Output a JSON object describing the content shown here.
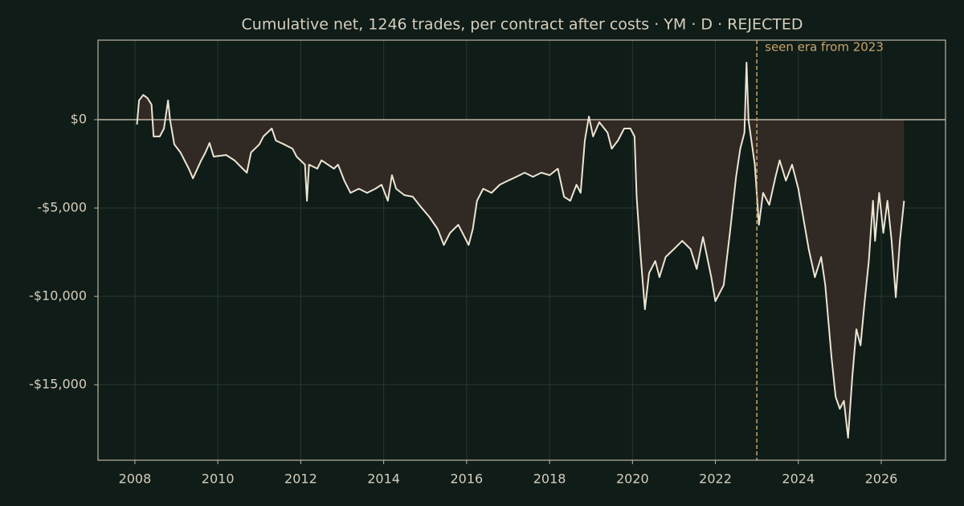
{
  "chart_data": {
    "type": "line",
    "title": "Cumulative net, 1246 trades, per contract after costs  ·  YM · D · REJECTED",
    "annotation": "seen era from 2023",
    "annotation_x": 2023.0,
    "xlim": [
      2007.11,
      2027.55
    ],
    "ylim": [
      -19270,
      4500
    ],
    "xticks": [
      2008,
      2010,
      2012,
      2014,
      2016,
      2018,
      2020,
      2022,
      2024,
      2026
    ],
    "yticks": [
      {
        "value": 0,
        "label": "$0"
      },
      {
        "value": -5000,
        "label": "-$5,000"
      },
      {
        "value": -10000,
        "label": "-$10,000"
      },
      {
        "value": -15000,
        "label": "-$15,000"
      }
    ],
    "grid": true,
    "fill_to_zero": true,
    "line_color": "#ede4d3",
    "fill_color": "#312a24",
    "annotation_color": "#c9a46a",
    "x": [
      2008.05,
      2008.1,
      2008.2,
      2008.3,
      2008.4,
      2008.45,
      2008.6,
      2008.7,
      2008.8,
      2008.85,
      2008.95,
      2009.1,
      2009.3,
      2009.4,
      2009.6,
      2009.7,
      2009.8,
      2009.9,
      2010.2,
      2010.4,
      2010.6,
      2010.7,
      2010.8,
      2011.0,
      2011.1,
      2011.3,
      2011.4,
      2011.6,
      2011.8,
      2011.9,
      2012.1,
      2012.15,
      2012.2,
      2012.4,
      2012.5,
      2012.8,
      2012.9,
      2013.05,
      2013.2,
      2013.4,
      2013.6,
      2013.8,
      2013.95,
      2014.1,
      2014.2,
      2014.3,
      2014.5,
      2014.7,
      2014.9,
      2015.1,
      2015.3,
      2015.45,
      2015.6,
      2015.8,
      2015.95,
      2016.05,
      2016.15,
      2016.25,
      2016.4,
      2016.6,
      2016.8,
      2017.0,
      2017.2,
      2017.4,
      2017.6,
      2017.8,
      2018.0,
      2018.2,
      2018.35,
      2018.5,
      2018.65,
      2018.75,
      2018.85,
      2018.95,
      2019.05,
      2019.2,
      2019.4,
      2019.5,
      2019.65,
      2019.8,
      2019.95,
      2020.05,
      2020.1,
      2020.2,
      2020.3,
      2020.4,
      2020.55,
      2020.65,
      2020.8,
      2021.0,
      2021.2,
      2021.4,
      2021.55,
      2021.7,
      2021.9,
      2022.0,
      2022.2,
      2022.35,
      2022.5,
      2022.6,
      2022.7,
      2022.75,
      2022.8,
      2022.95,
      2023.05,
      2023.15,
      2023.3,
      2023.45,
      2023.55,
      2023.7,
      2023.85,
      2024.0,
      2024.1,
      2024.25,
      2024.4,
      2024.55,
      2024.65,
      2024.8,
      2024.9,
      2025.0,
      2025.1,
      2025.2,
      2025.3,
      2025.4,
      2025.5,
      2025.6,
      2025.7,
      2025.8,
      2025.85,
      2025.95,
      2026.05,
      2026.15,
      2026.25,
      2026.35,
      2026.45,
      2026.55
    ],
    "values": [
      -270,
      1090,
      1400,
      1230,
      860,
      -950,
      -950,
      -500,
      1090,
      -45,
      -1400,
      -1860,
      -2770,
      -3320,
      -2300,
      -1860,
      -1320,
      -2090,
      -2000,
      -2300,
      -2770,
      -3000,
      -1860,
      -1400,
      -950,
      -500,
      -1180,
      -1400,
      -1640,
      -2090,
      -2545,
      -4590,
      -2545,
      -2770,
      -2300,
      -2770,
      -2545,
      -3450,
      -4140,
      -3910,
      -4140,
      -3910,
      -3680,
      -4590,
      -3140,
      -3910,
      -4270,
      -4360,
      -4950,
      -5500,
      -6180,
      -7090,
      -6410,
      -5950,
      -6640,
      -7090,
      -6180,
      -4590,
      -3910,
      -4140,
      -3680,
      -3450,
      -3230,
      -3000,
      -3230,
      -3000,
      -3140,
      -2770,
      -4360,
      -4590,
      -3680,
      -4140,
      -1180,
      180,
      -950,
      -140,
      -730,
      -1640,
      -1180,
      -500,
      -500,
      -950,
      -4360,
      -7770,
      -10730,
      -8680,
      -8000,
      -8910,
      -7770,
      -7320,
      -6860,
      -7320,
      -8450,
      -6640,
      -8910,
      -10270,
      -9360,
      -6410,
      -3230,
      -1640,
      -730,
      3230,
      -45,
      -2545,
      -5950,
      -4140,
      -4820,
      -3230,
      -2300,
      -3450,
      -2545,
      -3910,
      -5270,
      -7320,
      -8910,
      -7770,
      -9360,
      -13450,
      -15680,
      -16360,
      -15910,
      -18000,
      -14590,
      -11860,
      -12770,
      -10270,
      -8000,
      -4590,
      -6860,
      -4140,
      -6410,
      -4590,
      -6860,
      -10050,
      -6860,
      -4590
    ]
  }
}
